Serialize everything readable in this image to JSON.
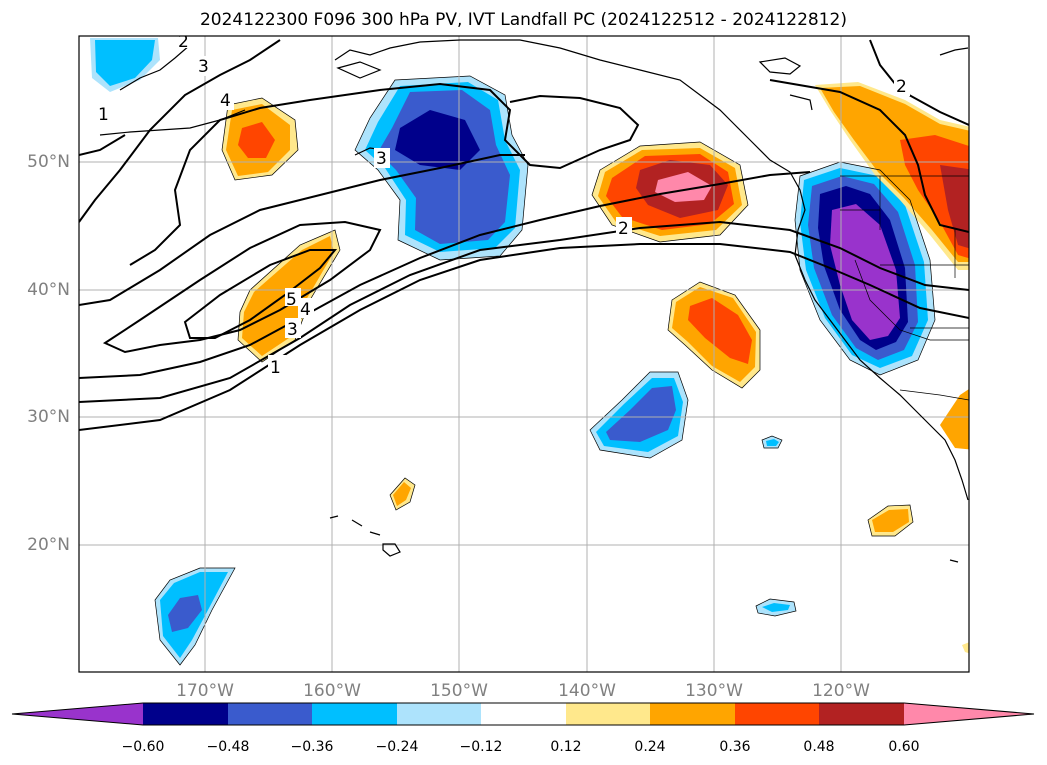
{
  "title": "2024122300 F096 300 hPa PV, IVT Landfall PC (2024122512 - 2024122812)",
  "axes": {
    "lat_labels": [
      "50°N",
      "40°N",
      "30°N",
      "20°N"
    ],
    "lon_labels": [
      "170°W",
      "160°W",
      "150°W",
      "140°W",
      "130°W",
      "120°W"
    ]
  },
  "contour_labels": [
    "1",
    "2",
    "3",
    "4",
    "5",
    "3",
    "3",
    "4",
    "1",
    "2",
    "2"
  ],
  "colorbar": {
    "ticks": [
      "−0.60",
      "−0.48",
      "−0.36",
      "−0.24",
      "−0.12",
      "0.12",
      "0.24",
      "0.36",
      "0.48",
      "0.60"
    ],
    "colors": [
      "#9933cc",
      "#00008b",
      "#3a5bcd",
      "#00bfff",
      "#ade3fc",
      "#ffffff",
      "#ffe88c",
      "#ffa500",
      "#ff4500",
      "#b22222",
      "#ff88aa"
    ]
  }
}
